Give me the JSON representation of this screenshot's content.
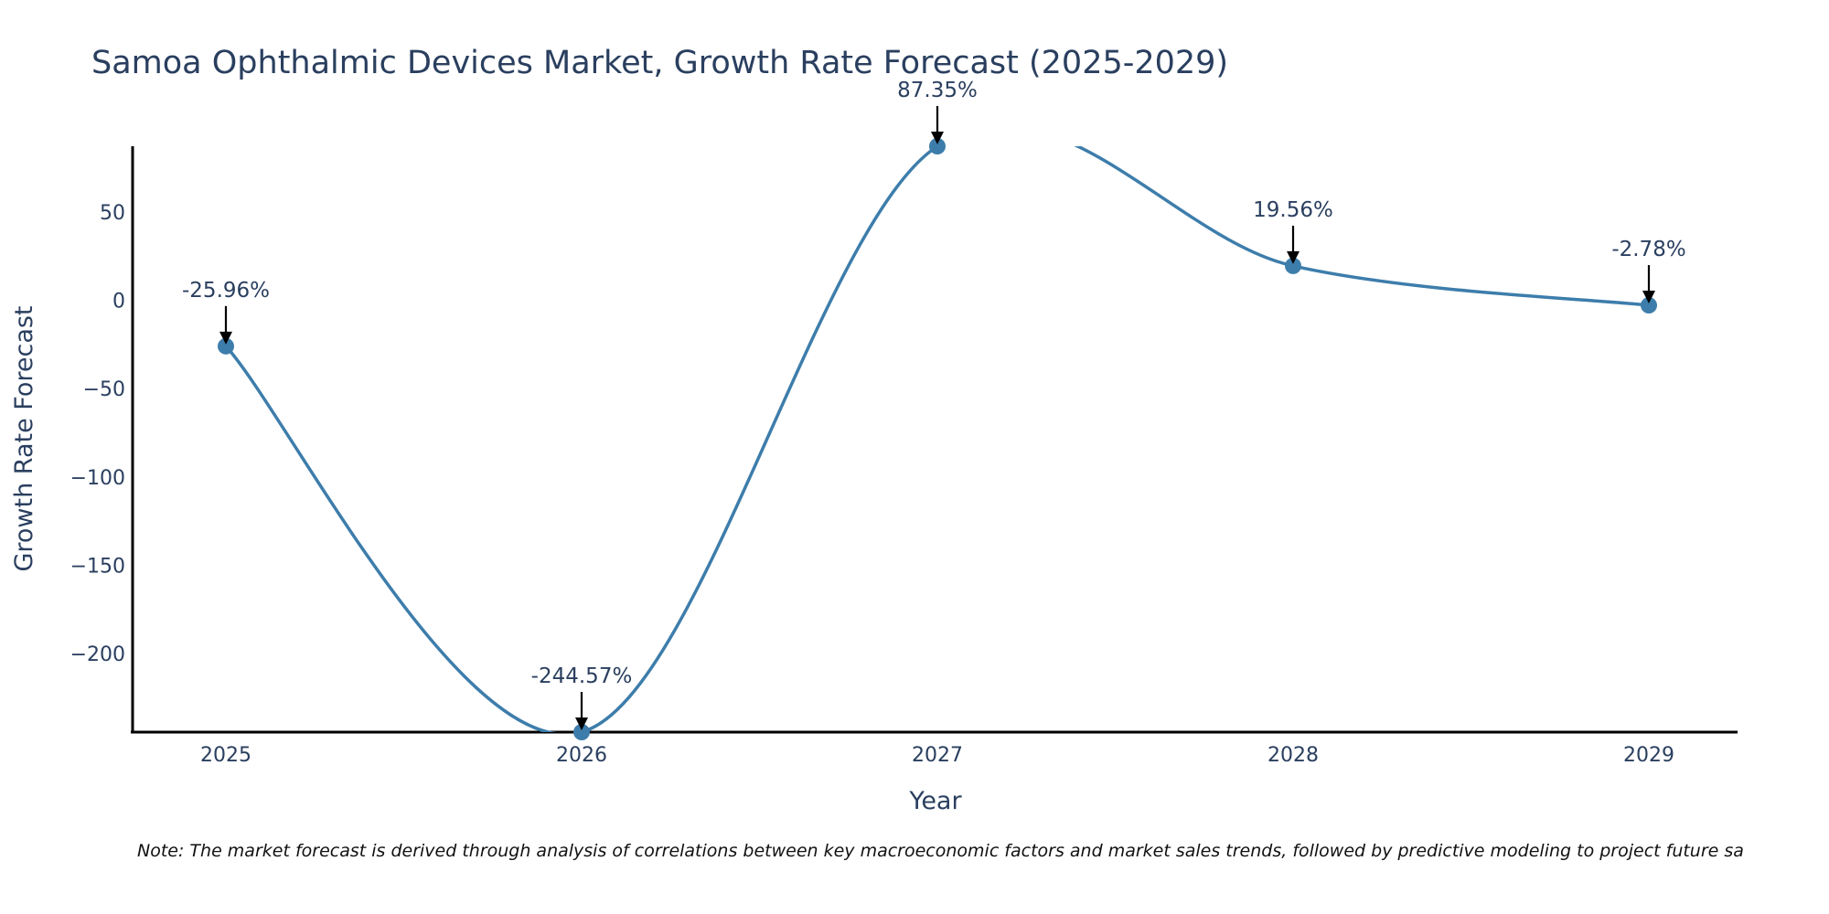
{
  "chart_data": {
    "type": "line",
    "title": "Samoa Ophthalmic Devices Market, Growth Rate Forecast (2025-2029)",
    "xlabel": "Year",
    "ylabel": "Growth Rate Forecast",
    "categories": [
      "2025",
      "2026",
      "2027",
      "2028",
      "2029"
    ],
    "values": [
      -25.96,
      -244.57,
      87.35,
      19.56,
      -2.78
    ],
    "data_labels": [
      "-25.96%",
      "-244.57%",
      "87.35%",
      "19.56%",
      "-2.78%"
    ],
    "yticks": [
      50,
      0,
      -50,
      -100,
      -150,
      -200
    ],
    "ytick_labels": [
      "50",
      "0",
      "−50",
      "−100",
      "−150",
      "−200"
    ],
    "ylim": [
      -244.57,
      87.35
    ],
    "line_shape": "spline",
    "grid": false,
    "legend": "none",
    "colors": {
      "line": "#3d7dab",
      "marker": "#3d7dab",
      "arrow": "#000000"
    }
  },
  "note": "Note: The market forecast is derived through analysis of correlations between key macroeconomic factors and market sales trends, followed by predictive modeling to project future sa"
}
